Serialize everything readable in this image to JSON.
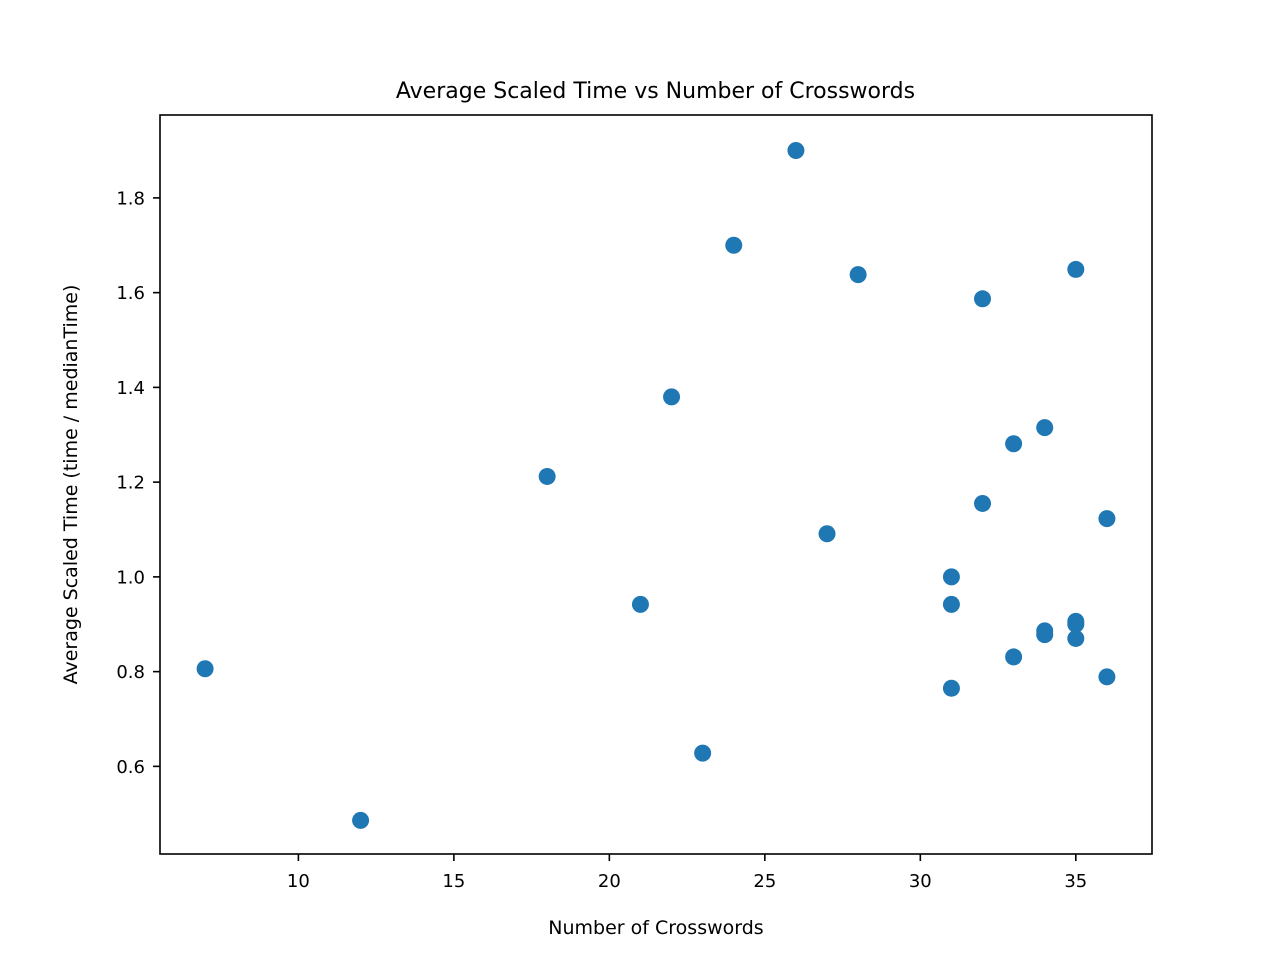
{
  "chart_data": {
    "type": "scatter",
    "title": "Average Scaled Time vs Number of Crosswords",
    "xlabel": "Number of Crosswords",
    "ylabel": "Average Scaled Time (time / medianTime)",
    "xlim": [
      5.55,
      37.45
    ],
    "ylim": [
      0.415,
      1.975
    ],
    "xticks": [
      10,
      15,
      20,
      25,
      30,
      35
    ],
    "yticks": [
      0.6,
      0.8,
      1.0,
      1.2,
      1.4,
      1.6,
      1.8
    ],
    "xtick_labels": [
      "10",
      "15",
      "20",
      "25",
      "30",
      "35"
    ],
    "ytick_labels": [
      "0.6",
      "0.8",
      "1.0",
      "1.2",
      "1.4",
      "1.6",
      "1.8"
    ],
    "grid": false,
    "marker_color": "#1f77b4",
    "points": [
      {
        "x": 7,
        "y": 0.806
      },
      {
        "x": 12,
        "y": 0.486
      },
      {
        "x": 18,
        "y": 1.212
      },
      {
        "x": 21,
        "y": 0.942
      },
      {
        "x": 22,
        "y": 1.38
      },
      {
        "x": 23,
        "y": 0.628
      },
      {
        "x": 24,
        "y": 1.7
      },
      {
        "x": 26,
        "y": 1.9
      },
      {
        "x": 27,
        "y": 1.091
      },
      {
        "x": 28,
        "y": 1.638
      },
      {
        "x": 31,
        "y": 1.0
      },
      {
        "x": 31,
        "y": 0.942
      },
      {
        "x": 31,
        "y": 0.765
      },
      {
        "x": 32,
        "y": 1.587
      },
      {
        "x": 32,
        "y": 1.155
      },
      {
        "x": 33,
        "y": 1.281
      },
      {
        "x": 33,
        "y": 0.831
      },
      {
        "x": 34,
        "y": 1.315
      },
      {
        "x": 34,
        "y": 0.886
      },
      {
        "x": 34,
        "y": 0.878
      },
      {
        "x": 35,
        "y": 1.649
      },
      {
        "x": 35,
        "y": 0.906
      },
      {
        "x": 35,
        "y": 0.9
      },
      {
        "x": 35,
        "y": 0.87
      },
      {
        "x": 36,
        "y": 1.123
      },
      {
        "x": 36,
        "y": 0.789
      }
    ]
  }
}
